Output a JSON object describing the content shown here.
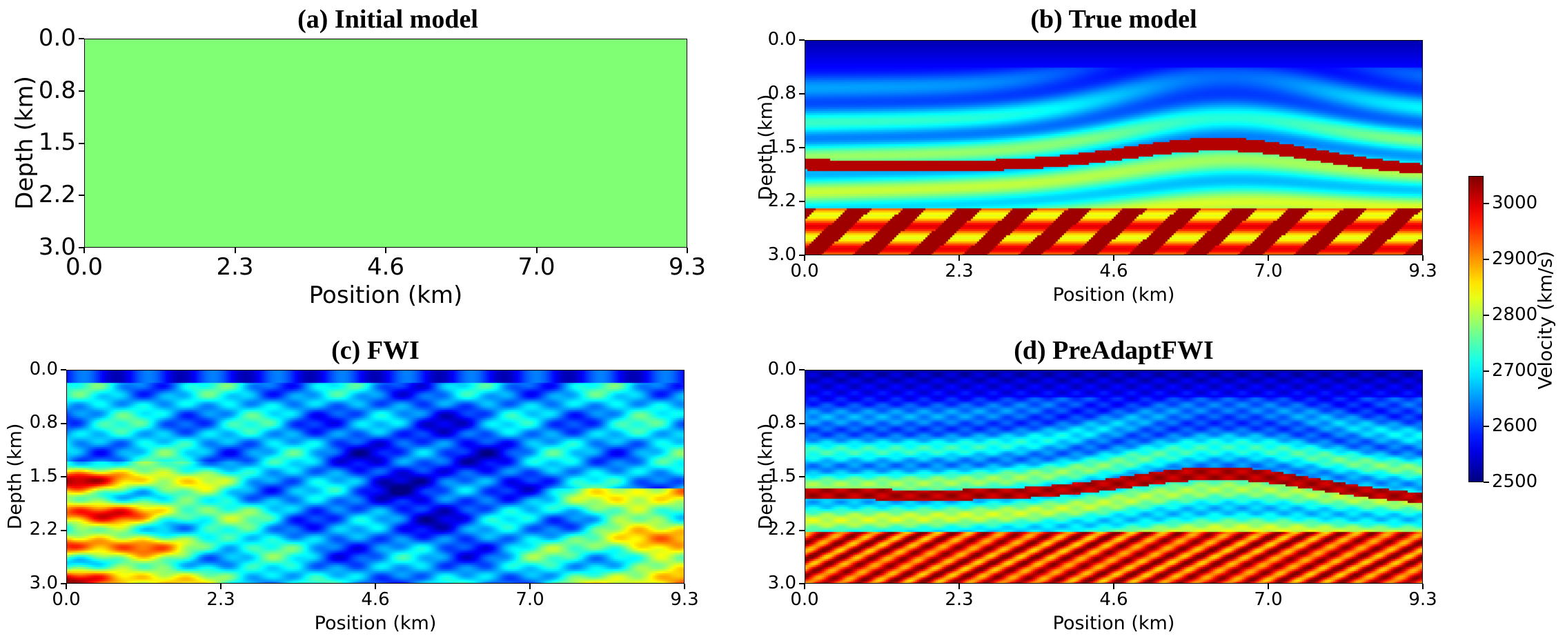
{
  "chart_data": [
    {
      "type": "heatmap",
      "title": "(a) Initial model",
      "xlabel": "Position (km)",
      "ylabel": "Depth (km)",
      "xlim": [
        0.0,
        9.3
      ],
      "ylim": [
        3.0,
        0.0
      ],
      "xticks": [
        "0.0",
        "2.3",
        "4.6",
        "7.0",
        "9.3"
      ],
      "yticks": [
        "0.0",
        "0.8",
        "1.5",
        "2.2",
        "3.0"
      ],
      "description": "constant velocity model",
      "constant_value": 2785,
      "color": "#80ff74"
    },
    {
      "type": "heatmap",
      "title": "(b) True model",
      "xlabel": "Position (km)",
      "ylabel": "Depth (km)",
      "xlim": [
        0.0,
        9.3
      ],
      "ylim": [
        3.0,
        0.0
      ],
      "xticks": [
        "0.0",
        "2.3",
        "4.6",
        "7.0",
        "9.3"
      ],
      "yticks": [
        "0.0",
        "0.8",
        "1.5",
        "2.2",
        "3.0"
      ]
    },
    {
      "type": "heatmap",
      "title": "(c) FWI",
      "xlabel": "Position (km)",
      "ylabel": "Depth (km)",
      "xlim": [
        0.0,
        9.3
      ],
      "ylim": [
        3.0,
        0.0
      ],
      "xticks": [
        "0.0",
        "2.3",
        "4.6",
        "7.0",
        "9.3"
      ],
      "yticks": [
        "0.0",
        "0.8",
        "1.5",
        "2.2",
        "3.0"
      ]
    },
    {
      "type": "heatmap",
      "title": "(d) PreAdaptFWI",
      "xlabel": "Position (km)",
      "ylabel": "Depth (km)",
      "xlim": [
        0.0,
        9.3
      ],
      "ylim": [
        3.0,
        0.0
      ],
      "xticks": [
        "0.0",
        "2.3",
        "4.6",
        "7.0",
        "9.3"
      ],
      "yticks": [
        "0.0",
        "0.8",
        "1.5",
        "2.2",
        "3.0"
      ]
    }
  ],
  "colorbar": {
    "label": "Velocity (km/s)",
    "colormap": "jet",
    "range": [
      2500,
      3050
    ],
    "ticks": [
      "3000",
      "2900",
      "2800",
      "2700",
      "2600",
      "2500"
    ],
    "tick_values": [
      3000,
      2900,
      2800,
      2700,
      2600,
      2500
    ]
  }
}
